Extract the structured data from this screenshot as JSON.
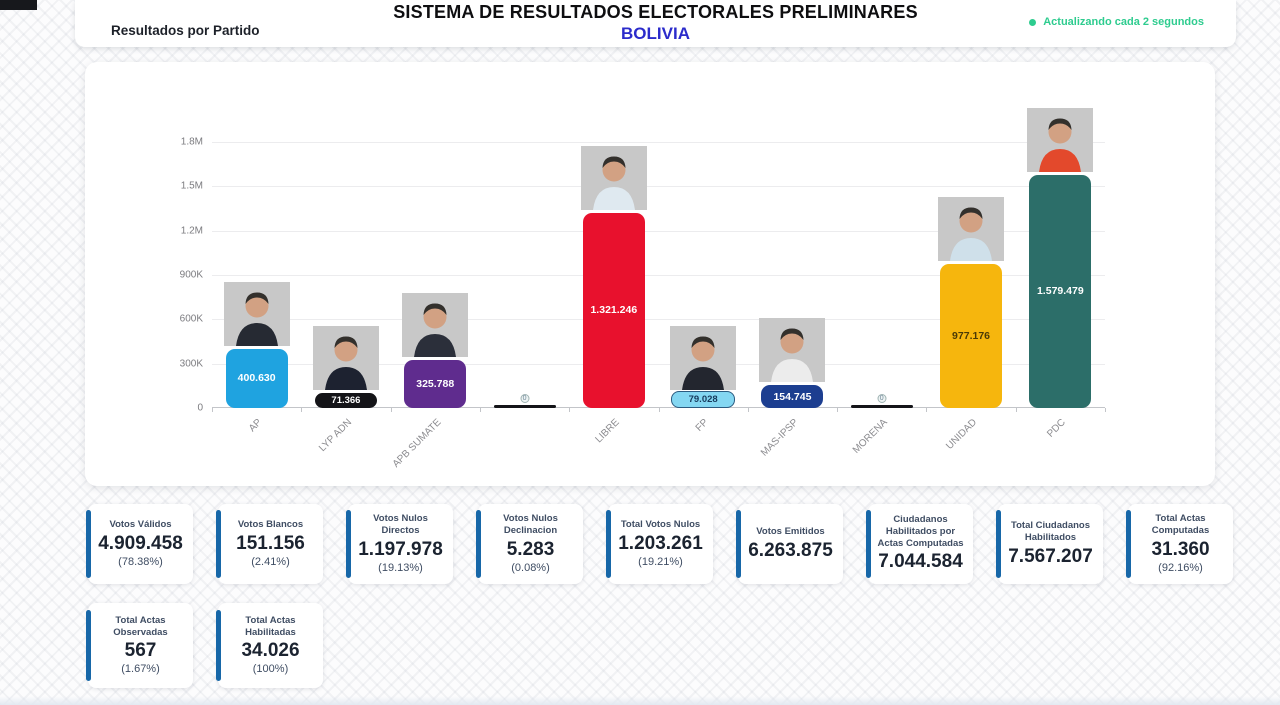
{
  "header": {
    "left_title": "Resultados por Partido",
    "title": "SISTEMA DE RESULTADOS ELECTORALES PRELIMINARES",
    "subtitle": "BOLIVIA",
    "subtitle_color": "#2b2bcb",
    "status": "Actualizando cada 2 segundos",
    "status_color": "#2ecc8f"
  },
  "chart_data": {
    "type": "bar",
    "title": "Resultados por Partido",
    "xlabel": "",
    "ylabel": "",
    "ylim": [
      0,
      1800000
    ],
    "grid": true,
    "legend": "none",
    "categories": [
      "AP",
      "LYP ADN",
      "APB SUMATE",
      "",
      "LIBRE",
      "FP",
      "MAS-IPSP",
      "MORENA",
      "UNIDAD",
      "PDC"
    ],
    "values": [
      400630,
      71366,
      325788,
      0,
      1321246,
      79028,
      154745,
      0,
      977176,
      1579479
    ],
    "y_ticks": [
      {
        "label": "0",
        "value": 0
      },
      {
        "label": "300K",
        "value": 300000
      },
      {
        "label": "600K",
        "value": 600000
      },
      {
        "label": "900K",
        "value": 900000
      },
      {
        "label": "1.2M",
        "value": 1200000
      },
      {
        "label": "1.5M",
        "value": 1500000
      },
      {
        "label": "1.8M",
        "value": 1800000
      }
    ],
    "parties": [
      {
        "name": "AP",
        "value": 400630,
        "value_label": "400.630",
        "color": "#1fa3e0",
        "label_color": "#ffffff",
        "photo": true,
        "shirt": "#262a33"
      },
      {
        "name": "LYP ADN",
        "value": 71366,
        "value_label": "71.366",
        "color": "#141418",
        "label_color": "#ffffff",
        "photo": true,
        "shirt": "#1d2230"
      },
      {
        "name": "APB SUMATE",
        "value": 325788,
        "value_label": "325.788",
        "color": "#5f2c8e",
        "label_color": "#ffffff",
        "photo": true,
        "shirt": "#2b2f3a"
      },
      {
        "name": "",
        "value": 0,
        "value_label": "0",
        "color": "#141418",
        "label_color": "#6d8596",
        "photo": false,
        "tiny": true
      },
      {
        "name": "LIBRE",
        "value": 1321246,
        "value_label": "1.321.246",
        "color": "#e8112d",
        "label_color": "#ffffff",
        "photo": true,
        "shirt": "#dfe9f0"
      },
      {
        "name": "FP",
        "value": 79028,
        "value_label": "79.028",
        "color": "#84d7f2",
        "label_color": "#173a5c",
        "border": "#2b5b80",
        "photo": true,
        "shirt": "#23262f"
      },
      {
        "name": "MAS-IPSP",
        "value": 154745,
        "value_label": "154.745",
        "color": "#1c3e90",
        "label_color": "#ffffff",
        "photo": true,
        "shirt": "#ececec"
      },
      {
        "name": "MORENA",
        "value": 0,
        "value_label": "0",
        "color": "#141418",
        "label_color": "#6d8596",
        "photo": false,
        "tiny": true
      },
      {
        "name": "UNIDAD",
        "value": 977176,
        "value_label": "977.176",
        "color": "#f6b60d",
        "label_color": "#4a3a06",
        "photo": true,
        "shirt": "#cfe0ea"
      },
      {
        "name": "PDC",
        "value": 1579479,
        "value_label": "1.579.479",
        "color": "#2c6e69",
        "label_color": "#ffffff",
        "photo": true,
        "shirt": "#e3492c"
      }
    ]
  },
  "stats": {
    "accent_color": "#1767a8",
    "row1": [
      {
        "title": "Votos Válidos",
        "value": "4.909.458",
        "percent": "(78.38%)"
      },
      {
        "title": "Votos Blancos",
        "value": "151.156",
        "percent": "(2.41%)"
      },
      {
        "title": "Votos Nulos Directos",
        "value": "1.197.978",
        "percent": "(19.13%)"
      },
      {
        "title": "Votos Nulos Declinacion",
        "value": "5.283",
        "percent": "(0.08%)"
      },
      {
        "title": "Total Votos Nulos",
        "value": "1.203.261",
        "percent": "(19.21%)"
      },
      {
        "title": "Votos Emitidos",
        "value": "6.263.875",
        "percent": ""
      },
      {
        "title": "Ciudadanos Habilitados por Actas Computadas",
        "value": "7.044.584",
        "percent": ""
      },
      {
        "title": "Total Ciudadanos Habilitados",
        "value": "7.567.207",
        "percent": ""
      },
      {
        "title": "Total Actas Computadas",
        "value": "31.360",
        "percent": "(92.16%)"
      }
    ],
    "row2": [
      {
        "title": "Total Actas Observadas",
        "value": "567",
        "percent": "(1.67%)"
      },
      {
        "title": "Total Actas Habilitadas",
        "value": "34.026",
        "percent": "(100%)"
      }
    ]
  }
}
